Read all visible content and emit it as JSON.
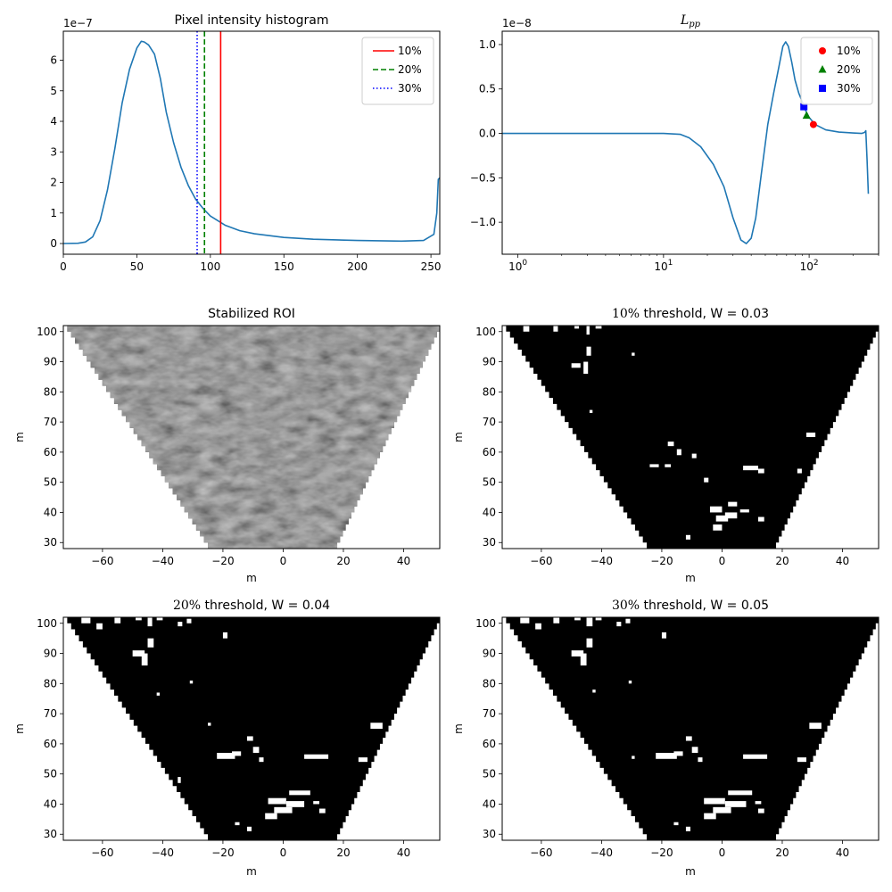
{
  "chart_data": [
    {
      "id": "hist",
      "type": "line",
      "title": "Pixel intensity histogram",
      "xlabel": "",
      "ylabel": "",
      "xlim": [
        0,
        256
      ],
      "ylim": [
        -3.5e-08,
        6.95e-07
      ],
      "offset_text": "1e−7",
      "x_ticks": [
        0,
        50,
        100,
        150,
        200,
        250
      ],
      "x_tick_labels": [
        "0",
        "50",
        "100",
        "150",
        "200",
        "250"
      ],
      "y_ticks": [
        0,
        1e-07,
        2e-07,
        3e-07,
        4e-07,
        5e-07,
        6e-07
      ],
      "y_tick_labels": [
        "0",
        "1",
        "2",
        "3",
        "4",
        "5",
        "6"
      ],
      "series": [
        {
          "color": "#1f77b4",
          "x": [
            0,
            10,
            15,
            20,
            25,
            30,
            35,
            40,
            45,
            50,
            53,
            55,
            58,
            62,
            66,
            70,
            75,
            80,
            85,
            90,
            95,
            100,
            110,
            120,
            130,
            150,
            170,
            200,
            230,
            245,
            252,
            254,
            255,
            256
          ],
          "y": [
            0,
            1e-09,
            5e-09,
            2.2e-08,
            7.5e-08,
            1.75e-07,
            3.1e-07,
            4.6e-07,
            5.7e-07,
            6.4e-07,
            6.62e-07,
            6.6e-07,
            6.5e-07,
            6.2e-07,
            5.4e-07,
            4.3e-07,
            3.3e-07,
            2.5e-07,
            1.9e-07,
            1.45e-07,
            1.15e-07,
            9e-08,
            6e-08,
            4.2e-08,
            3.2e-08,
            2e-08,
            1.4e-08,
            1e-08,
            8e-09,
            1e-08,
            3e-08,
            1e-07,
            2.1e-07,
            2.15e-07
          ]
        }
      ],
      "vlines": [
        {
          "name": "10%",
          "x": 107,
          "color": "#ff0000",
          "style": "solid"
        },
        {
          "name": "20%",
          "x": 96,
          "color": "#008000",
          "style": "dashed"
        },
        {
          "name": "30%",
          "x": 91,
          "color": "#0000ff",
          "style": "dotted"
        }
      ],
      "legend": "top-right"
    },
    {
      "id": "lpp",
      "type": "line",
      "title": "L_pp",
      "title_main": "L",
      "title_sub": "pp",
      "x_scale": "log",
      "xlim": [
        0.78,
        300
      ],
      "ylim": [
        -1.36e-08,
        1.15e-08
      ],
      "offset_text": "1e−8",
      "x_ticks": [
        1,
        10,
        100
      ],
      "x_tick_labels": [
        {
          "base": "10",
          "exp": "0"
        },
        {
          "base": "10",
          "exp": "1"
        },
        {
          "base": "10",
          "exp": "2"
        }
      ],
      "y_ticks": [
        -1e-08,
        -5e-09,
        0,
        5e-09,
        1e-08
      ],
      "y_tick_labels": [
        "−1.0",
        "−0.5",
        "0.0",
        "0.5",
        "1.0"
      ],
      "series": [
        {
          "color": "#1f77b4",
          "x": [
            0.78,
            1,
            2,
            5,
            10,
            13,
            15,
            18,
            22,
            26,
            30,
            34,
            37,
            40,
            43,
            47,
            52,
            57,
            62,
            66,
            69,
            72,
            76,
            80,
            85,
            90,
            95,
            100,
            110,
            130,
            160,
            200,
            230,
            240,
            245,
            250,
            255
          ],
          "y": [
            0,
            0,
            0,
            0,
            0,
            -1e-10,
            -5e-10,
            -1.5e-09,
            -3.5e-09,
            -6e-09,
            -9.5e-09,
            -1.2e-08,
            -1.24e-08,
            -1.18e-08,
            -9.5e-09,
            -4.5e-09,
            1e-09,
            4.5e-09,
            7.5e-09,
            9.8e-09,
            1.03e-08,
            9.8e-09,
            8e-09,
            6e-09,
            4.5e-09,
            3.5e-09,
            2.5e-09,
            1.8e-09,
            1e-09,
            4e-10,
            1.5e-10,
            5e-11,
            0.0,
            1e-10,
            3e-10,
            -3e-09,
            -6.8e-09
          ]
        }
      ],
      "markers": [
        {
          "name": "10%",
          "x": 107,
          "y": 1e-09,
          "color": "#ff0000",
          "shape": "circle"
        },
        {
          "name": "20%",
          "x": 96,
          "y": 2e-09,
          "color": "#008000",
          "shape": "triangle"
        },
        {
          "name": "30%",
          "x": 92,
          "y": 3e-09,
          "color": "#0000ff",
          "shape": "square"
        }
      ],
      "legend": "top-right"
    },
    {
      "id": "roi",
      "type": "heatmap",
      "title": "Stabilized ROI",
      "xlabel": "m",
      "ylabel": "m",
      "xlim": [
        -73,
        52
      ],
      "ylim": [
        28,
        102
      ],
      "x_ticks": [
        -60,
        -40,
        -20,
        0,
        20,
        40
      ],
      "x_tick_labels": [
        "−60",
        "−40",
        "−20",
        "0",
        "20",
        "40"
      ],
      "y_ticks": [
        30,
        40,
        50,
        60,
        70,
        80,
        90,
        100
      ],
      "y_tick_labels": [
        "30",
        "40",
        "50",
        "60",
        "70",
        "80",
        "90",
        "100"
      ],
      "cone": {
        "apex_left": -25,
        "apex_right": 17,
        "top_left": -73,
        "top_right": 52
      },
      "colormap": "gray"
    },
    {
      "id": "t10",
      "type": "heatmap",
      "title": "10% threshold, W = 0.03",
      "title_pct": "10%",
      "title_rest": " threshold, W = 0.03",
      "xlabel": "m",
      "ylabel": "m",
      "xlim": [
        -73,
        52
      ],
      "ylim": [
        28,
        102
      ],
      "x_ticks": [
        -60,
        -40,
        -20,
        0,
        20,
        40
      ],
      "x_tick_labels": [
        "−60",
        "−40",
        "−20",
        "0",
        "20",
        "40"
      ],
      "y_ticks": [
        30,
        40,
        50,
        60,
        70,
        80,
        90,
        100
      ],
      "y_tick_labels": [
        "30",
        "40",
        "50",
        "60",
        "70",
        "80",
        "90",
        "100"
      ],
      "cone": {
        "apex_left": -25,
        "apex_right": 17,
        "top_left": -73,
        "top_right": 52
      },
      "colormap": "binary",
      "white_regions": [
        [
          -66,
          100,
          2,
          2
        ],
        [
          -56,
          100,
          1.5,
          2
        ],
        [
          -49,
          101,
          1.5,
          1.5
        ],
        [
          -45,
          99,
          1,
          3
        ],
        [
          -42,
          101,
          2,
          1.5
        ],
        [
          -50,
          88,
          3,
          1.5
        ],
        [
          -46,
          86,
          1.5,
          4
        ],
        [
          -45,
          92,
          1.5,
          3
        ],
        [
          -30,
          92,
          1,
          1
        ],
        [
          -44,
          73,
          1,
          1
        ],
        [
          -18,
          62,
          2,
          1.5
        ],
        [
          -15,
          59,
          1.5,
          2
        ],
        [
          -24,
          55,
          3,
          1
        ],
        [
          -19,
          55,
          2,
          1
        ],
        [
          -10,
          58,
          1.5,
          1.5
        ],
        [
          7,
          54,
          5,
          1.5
        ],
        [
          12,
          53,
          2,
          1.5
        ],
        [
          -6,
          50,
          1.5,
          1.5
        ],
        [
          28,
          65,
          3,
          1.5
        ],
        [
          25,
          53,
          1.5,
          1.5
        ],
        [
          -4,
          40,
          4,
          2
        ],
        [
          -2,
          37,
          4,
          2
        ],
        [
          1,
          38,
          4,
          2
        ],
        [
          2,
          42,
          3,
          1.5
        ],
        [
          6,
          40,
          3,
          1
        ],
        [
          -3,
          34,
          3,
          2
        ],
        [
          12,
          37,
          2,
          1.5
        ],
        [
          -12,
          31,
          1.5,
          1.5
        ]
      ]
    },
    {
      "id": "t20",
      "type": "heatmap",
      "title": "20% threshold, W = 0.04",
      "title_pct": "20%",
      "title_rest": " threshold, W = 0.04",
      "xlabel": "m",
      "ylabel": "m",
      "xlim": [
        -73,
        52
      ],
      "ylim": [
        28,
        102
      ],
      "x_ticks": [
        -60,
        -40,
        -20,
        0,
        20,
        40
      ],
      "x_tick_labels": [
        "−60",
        "−40",
        "−20",
        "0",
        "20",
        "40"
      ],
      "y_ticks": [
        30,
        40,
        50,
        60,
        70,
        80,
        90,
        100
      ],
      "y_tick_labels": [
        "30",
        "40",
        "50",
        "60",
        "70",
        "80",
        "90",
        "100"
      ],
      "cone": {
        "apex_left": -25,
        "apex_right": 17,
        "top_left": -73,
        "top_right": 52
      },
      "colormap": "binary",
      "white_regions": [
        [
          -67,
          100,
          3,
          2
        ],
        [
          -62,
          98,
          2,
          2
        ],
        [
          -56,
          100,
          2,
          2
        ],
        [
          -49,
          101,
          2,
          1.5
        ],
        [
          -45,
          99,
          1.5,
          3
        ],
        [
          -42,
          101,
          2,
          1.5
        ],
        [
          -35,
          99,
          1.5,
          1.5
        ],
        [
          -32,
          100,
          1.5,
          1.5
        ],
        [
          -50,
          89,
          4,
          2
        ],
        [
          -47,
          86,
          2,
          4
        ],
        [
          -45,
          92,
          2,
          3
        ],
        [
          -20,
          95,
          1.5,
          2
        ],
        [
          -31,
          80,
          1,
          1
        ],
        [
          -42,
          76,
          1,
          1
        ],
        [
          -25,
          66,
          1,
          1
        ],
        [
          -22,
          55,
          6,
          2
        ],
        [
          -17,
          56,
          3,
          1.5
        ],
        [
          -12,
          61,
          2,
          1.5
        ],
        [
          -10,
          57,
          2,
          2
        ],
        [
          -8,
          54,
          1.5,
          1.5
        ],
        [
          7,
          55,
          8,
          1.5
        ],
        [
          25,
          54,
          3,
          1.5
        ],
        [
          29,
          65,
          4,
          2
        ],
        [
          -35,
          47,
          1,
          2
        ],
        [
          -5,
          40,
          6,
          2
        ],
        [
          -3,
          37,
          6,
          2
        ],
        [
          1,
          39,
          6,
          2
        ],
        [
          2,
          43,
          7,
          1.5
        ],
        [
          10,
          40,
          2,
          1
        ],
        [
          -6,
          35,
          4,
          2
        ],
        [
          12,
          37,
          2,
          1.5
        ],
        [
          -16,
          33,
          1.5,
          1
        ],
        [
          -12,
          31,
          1.5,
          1.5
        ]
      ]
    },
    {
      "id": "t30",
      "type": "heatmap",
      "title": "30% threshold, W = 0.05",
      "title_pct": "30%",
      "title_rest": " threshold, W = 0.05",
      "xlabel": "m",
      "ylabel": "m",
      "xlim": [
        -73,
        52
      ],
      "ylim": [
        28,
        102
      ],
      "x_ticks": [
        -60,
        -40,
        -20,
        0,
        20,
        40
      ],
      "x_tick_labels": [
        "−60",
        "−40",
        "−20",
        "0",
        "20",
        "40"
      ],
      "y_ticks": [
        30,
        40,
        50,
        60,
        70,
        80,
        90,
        100
      ],
      "y_tick_labels": [
        "30",
        "40",
        "50",
        "60",
        "70",
        "80",
        "90",
        "100"
      ],
      "cone": {
        "apex_left": -25,
        "apex_right": 17,
        "top_left": -73,
        "top_right": 52
      },
      "colormap": "binary",
      "white_regions": [
        [
          -67,
          100,
          3,
          2
        ],
        [
          -62,
          98,
          2,
          2
        ],
        [
          -56,
          100,
          2,
          2
        ],
        [
          -49,
          101,
          2,
          1.5
        ],
        [
          -45,
          99,
          2,
          3
        ],
        [
          -42,
          101,
          2,
          1.5
        ],
        [
          -35,
          99,
          1.5,
          1.5
        ],
        [
          -32,
          100,
          1.5,
          1.5
        ],
        [
          -50,
          89,
          4,
          2
        ],
        [
          -47,
          86,
          2,
          4
        ],
        [
          -45,
          92,
          2,
          3
        ],
        [
          -20,
          95,
          1.5,
          2
        ],
        [
          -31,
          80,
          1,
          1
        ],
        [
          -43,
          77,
          1,
          1
        ],
        [
          -22,
          55,
          7,
          2
        ],
        [
          -16,
          56,
          3,
          1.5
        ],
        [
          -12,
          61,
          2,
          1.5
        ],
        [
          -10,
          57,
          2,
          2
        ],
        [
          -8,
          54,
          1.5,
          1.5
        ],
        [
          7,
          55,
          8,
          1.5
        ],
        [
          25,
          54,
          3,
          1.5
        ],
        [
          29,
          65,
          4,
          2
        ],
        [
          -30,
          55,
          1,
          1
        ],
        [
          -6,
          40,
          7,
          2
        ],
        [
          -3,
          37,
          6,
          2
        ],
        [
          1,
          39,
          7,
          2
        ],
        [
          2,
          43,
          8,
          1.5
        ],
        [
          11,
          40,
          2,
          1
        ],
        [
          -6,
          35,
          4,
          2
        ],
        [
          12,
          37,
          2,
          1.5
        ],
        [
          -16,
          33,
          1.5,
          1
        ],
        [
          -12,
          31,
          1.5,
          1.5
        ]
      ]
    }
  ]
}
